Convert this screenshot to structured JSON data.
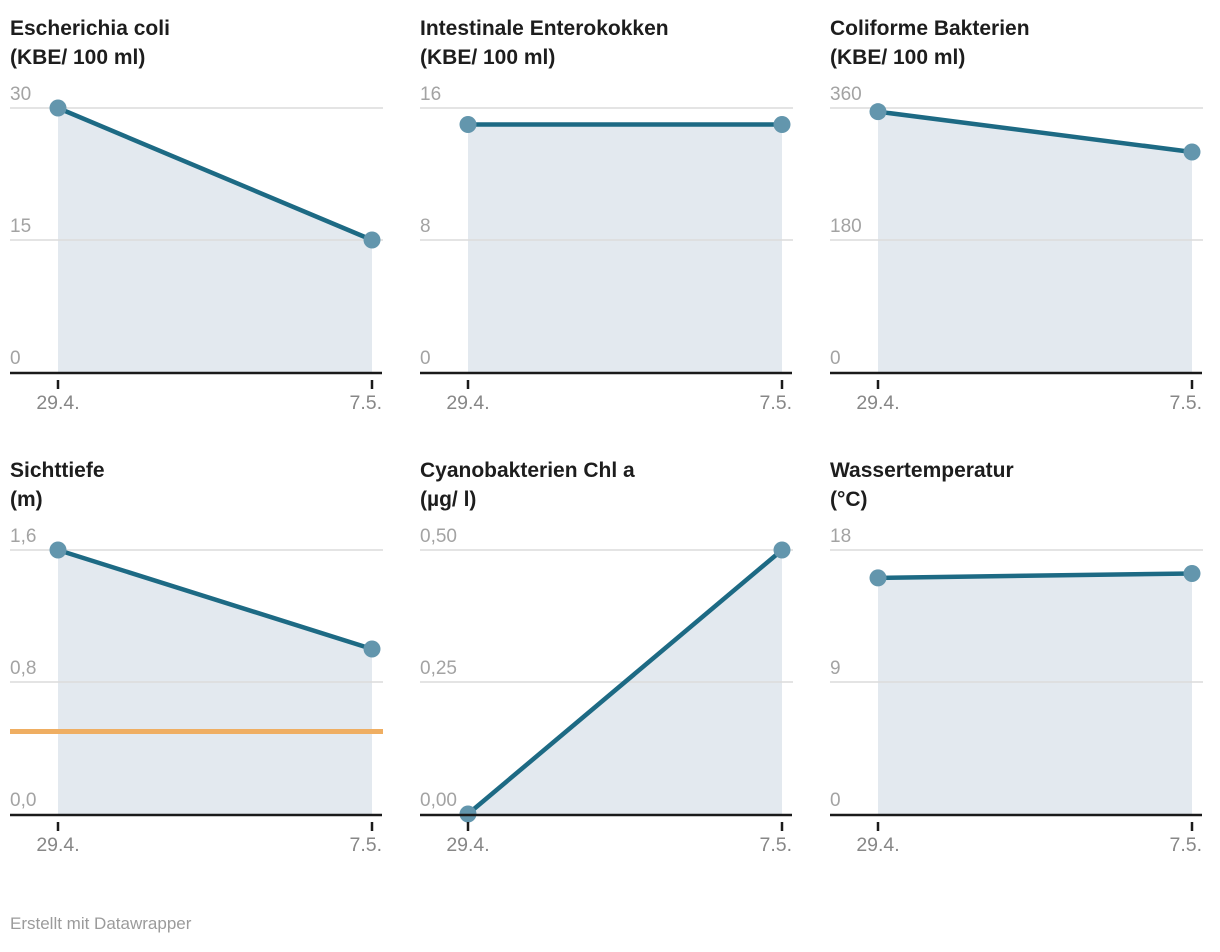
{
  "footer": {
    "credit": "Erstellt mit Datawrapper"
  },
  "colors": {
    "line": "#1d6a84",
    "point": "#6396ad",
    "area": "#e3e9ef",
    "grid": "#dcdcdc",
    "axis": "#1a1a1a",
    "y_tick_label": "#a3a3a3",
    "x_tick_label": "#878787",
    "title": "#1d1d1d",
    "threshold": "#efae62",
    "footer_text": "#9b9b9b"
  },
  "chart_data": [
    {
      "type": "area",
      "title": "Escherichia coli",
      "unit": "(KBE/ 100 ml)",
      "x": [
        "29.4.",
        "7.5."
      ],
      "values": [
        30,
        15
      ],
      "ylim": [
        0,
        30
      ],
      "yticks": [
        0,
        15,
        30
      ],
      "ytick_labels": [
        "0",
        "15",
        "30"
      ]
    },
    {
      "type": "area",
      "title": "Intestinale Enterokokken",
      "unit": "(KBE/ 100 ml)",
      "x": [
        "29.4.",
        "7.5."
      ],
      "values": [
        15,
        15
      ],
      "ylim": [
        0,
        16
      ],
      "yticks": [
        0,
        8,
        16
      ],
      "ytick_labels": [
        "0",
        "8",
        "16"
      ]
    },
    {
      "type": "area",
      "title": "Coliforme Bakterien",
      "unit": "(KBE/ 100 ml)",
      "x": [
        "29.4.",
        "7.5."
      ],
      "values": [
        355,
        300
      ],
      "ylim": [
        0,
        360
      ],
      "yticks": [
        0,
        180,
        360
      ],
      "ytick_labels": [
        "0",
        "180",
        "360"
      ]
    },
    {
      "type": "area",
      "title": "Sichttiefe",
      "unit": "(m)",
      "x": [
        "29.4.",
        "7.5."
      ],
      "values": [
        1.6,
        1.0
      ],
      "threshold": 0.5,
      "ylim": [
        0,
        1.6
      ],
      "yticks": [
        0,
        0.8,
        1.6
      ],
      "ytick_labels": [
        "0,0",
        "0,8",
        "1,6"
      ]
    },
    {
      "type": "area",
      "title": "Cyanobakterien Chl a",
      "unit": "(µg/ l)",
      "x": [
        "29.4.",
        "7.5."
      ],
      "values": [
        0.0,
        0.5
      ],
      "ylim": [
        0,
        0.5
      ],
      "yticks": [
        0,
        0.25,
        0.5
      ],
      "ytick_labels": [
        "0,00",
        "0,25",
        "0,50"
      ]
    },
    {
      "type": "area",
      "title": "Wassertemperatur",
      "unit": "(°C)",
      "x": [
        "29.4.",
        "7.5."
      ],
      "values": [
        16.1,
        16.4
      ],
      "ylim": [
        0,
        18
      ],
      "yticks": [
        0,
        9,
        18
      ],
      "ytick_labels": [
        "0",
        "9",
        "18"
      ]
    }
  ]
}
